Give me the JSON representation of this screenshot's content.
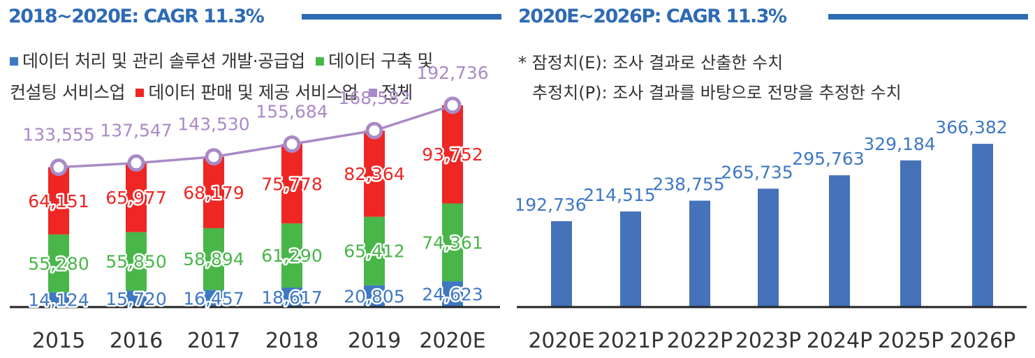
{
  "colors": {
    "title": "#2e6bb5",
    "processing": "#3f78c2",
    "building": "#48b649",
    "sales": "#ee2624",
    "total": "#a98ac6",
    "forecast_bar": "#4572b9",
    "axis": "#222222"
  },
  "left": {
    "title": "2018~2020E: CAGR 11.3%",
    "legend": [
      {
        "label": "데이터 처리 및 관리 솔루션 개발·공급업",
        "color": "#3f78c2"
      },
      {
        "label": "데이터 구축 및",
        "color": "#48b649"
      },
      {
        "label": "컨설팅 서비스업",
        "color": null
      },
      {
        "label": "데이터 판매 및 제공 서비스업",
        "color": "#ee2624"
      },
      {
        "label": "전체",
        "color": "#a98ac6"
      }
    ]
  },
  "right": {
    "title": "2020E~2026P: CAGR 11.3%",
    "notes": [
      "* 잠정치(E): 조사 결과로 산출한 수치",
      "추정치(P): 조사 결과를 바탕으로 전망을 추정한 수치"
    ]
  },
  "chart_data": [
    {
      "type": "bar",
      "stacked": true,
      "categories": [
        "2015",
        "2016",
        "2017",
        "2018",
        "2019",
        "2020E"
      ],
      "series": [
        {
          "name": "데이터 처리 및 관리 솔루션 개발·공급업",
          "values": [
            14124,
            15720,
            16457,
            18617,
            20805,
            24623
          ],
          "labels": [
            "14,124",
            "15,720",
            "16,457",
            "18,617",
            "20,805",
            "24,623"
          ]
        },
        {
          "name": "데이터 구축 및 컨설팅 서비스업",
          "values": [
            55280,
            55850,
            58894,
            61290,
            65412,
            74361
          ],
          "labels": [
            "55,280",
            "55,850",
            "58,894",
            "61,290",
            "65,412",
            "74,361"
          ]
        },
        {
          "name": "데이터 판매 및 제공 서비스업",
          "values": [
            64151,
            65977,
            68179,
            75778,
            82364,
            93752
          ],
          "labels": [
            "64,151",
            "65,977",
            "68,179",
            "75,778",
            "82,364",
            "93,752"
          ]
        }
      ],
      "total": {
        "name": "전체",
        "values": [
          133555,
          137547,
          143530,
          155684,
          168582,
          192736
        ],
        "labels": [
          "133,555",
          "137,547",
          "143,530",
          "155,684",
          "168,582",
          "192,736"
        ]
      },
      "ylim": [
        0,
        220000
      ],
      "grid": false
    },
    {
      "type": "bar",
      "categories": [
        "2020E",
        "2021P",
        "2022P",
        "2023P",
        "2024P",
        "2025P",
        "2026P"
      ],
      "values": [
        192736,
        214515,
        238755,
        265735,
        295763,
        329184,
        366382
      ],
      "labels": [
        "192,736",
        "214,515",
        "238,755",
        "265,735",
        "295,763",
        "329,184",
        "366,382"
      ],
      "ylim": [
        0,
        390000
      ],
      "grid": false
    }
  ]
}
